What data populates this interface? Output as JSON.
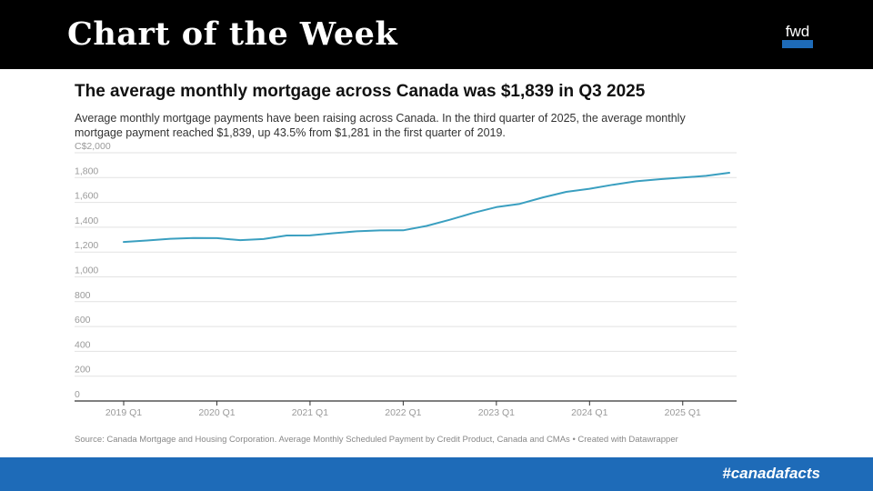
{
  "header": {
    "banner_title": "Chart of the Week",
    "logo_text": "fwd",
    "banner_color": "#000000",
    "accent_color": "#1e6bb8"
  },
  "footer": {
    "hashtag": "#canadafacts"
  },
  "source": "Source: Canada Mortgage and Housing Corporation. Average Monthly Scheduled Payment by Credit Product, Canada and CMAs • Created with Datawrapper",
  "chart_data": {
    "type": "line",
    "title": "The average monthly mortgage across Canada was $1,839 in Q3 2025",
    "subtitle": "Average monthly mortgage payments have been raising across Canada. In the third quarter of 2025, the average monthly mortgage payment reached $1,839, up 43.5% from $1,281 in the first quarter of 2019.",
    "xlabel": "",
    "ylabel": "",
    "ylim": [
      0,
      2000
    ],
    "y_ticks": [
      0,
      200,
      400,
      600,
      800,
      1000,
      1200,
      1400,
      1600,
      1800,
      2000
    ],
    "y_tick_labels": [
      "0",
      "200",
      "400",
      "600",
      "800",
      "1,000",
      "1,200",
      "1,400",
      "1,600",
      "1,800",
      "C$2,000"
    ],
    "x_tick_labels": [
      "2019 Q1",
      "2020 Q1",
      "2021 Q1",
      "2022 Q1",
      "2023 Q1",
      "2024 Q1",
      "2025 Q1"
    ],
    "x_tick_quarters": [
      "2019 Q1",
      "2020 Q1",
      "2021 Q1",
      "2022 Q1",
      "2023 Q1",
      "2024 Q1",
      "2025 Q1"
    ],
    "grid": true,
    "line_color": "#3a9fc0",
    "series": [
      {
        "quarters": [
          "2019 Q1",
          "2019 Q2",
          "2019 Q3",
          "2019 Q4",
          "2020 Q1",
          "2020 Q2",
          "2020 Q3",
          "2020 Q4",
          "2021 Q1",
          "2021 Q2",
          "2021 Q3",
          "2021 Q4",
          "2022 Q1",
          "2022 Q2",
          "2022 Q3",
          "2022 Q4",
          "2023 Q1",
          "2023 Q2",
          "2023 Q3",
          "2023 Q4",
          "2024 Q1",
          "2024 Q2",
          "2024 Q3",
          "2024 Q4",
          "2025 Q1",
          "2025 Q2",
          "2025 Q3"
        ],
        "values": [
          1281,
          1293,
          1307,
          1313,
          1312,
          1296,
          1305,
          1333,
          1334,
          1352,
          1367,
          1374,
          1375,
          1410,
          1460,
          1515,
          1562,
          1588,
          1640,
          1685,
          1710,
          1742,
          1770,
          1787,
          1800,
          1814,
          1839
        ]
      }
    ]
  }
}
